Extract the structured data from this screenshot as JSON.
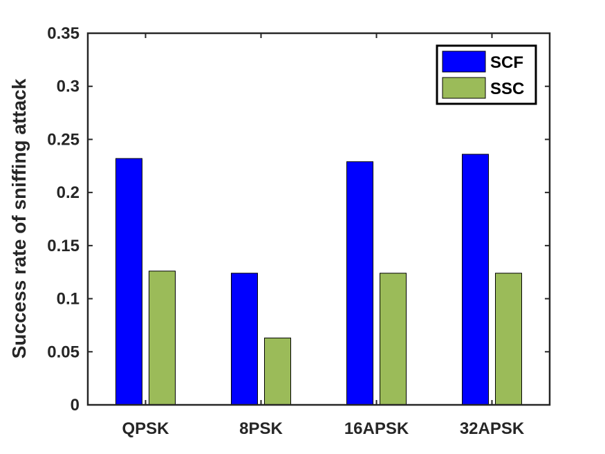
{
  "chart_data": {
    "type": "bar",
    "categories": [
      "QPSK",
      "8PSK",
      "16APSK",
      "32APSK"
    ],
    "series": [
      {
        "name": "SCF",
        "values": [
          0.232,
          0.124,
          0.229,
          0.236
        ],
        "color": "#0000ff"
      },
      {
        "name": "SSC",
        "values": [
          0.126,
          0.063,
          0.124,
          0.124
        ],
        "color": "#9bbb59"
      }
    ],
    "title": "",
    "xlabel": "",
    "ylabel": "Success rate of sniffing attack",
    "ylim": [
      0,
      0.35
    ],
    "yticks": [
      "0",
      "0.05",
      "0.1",
      "0.15",
      "0.2",
      "0.25",
      "0.3",
      "0.35"
    ],
    "legend_position": "top-right",
    "grid": false
  }
}
